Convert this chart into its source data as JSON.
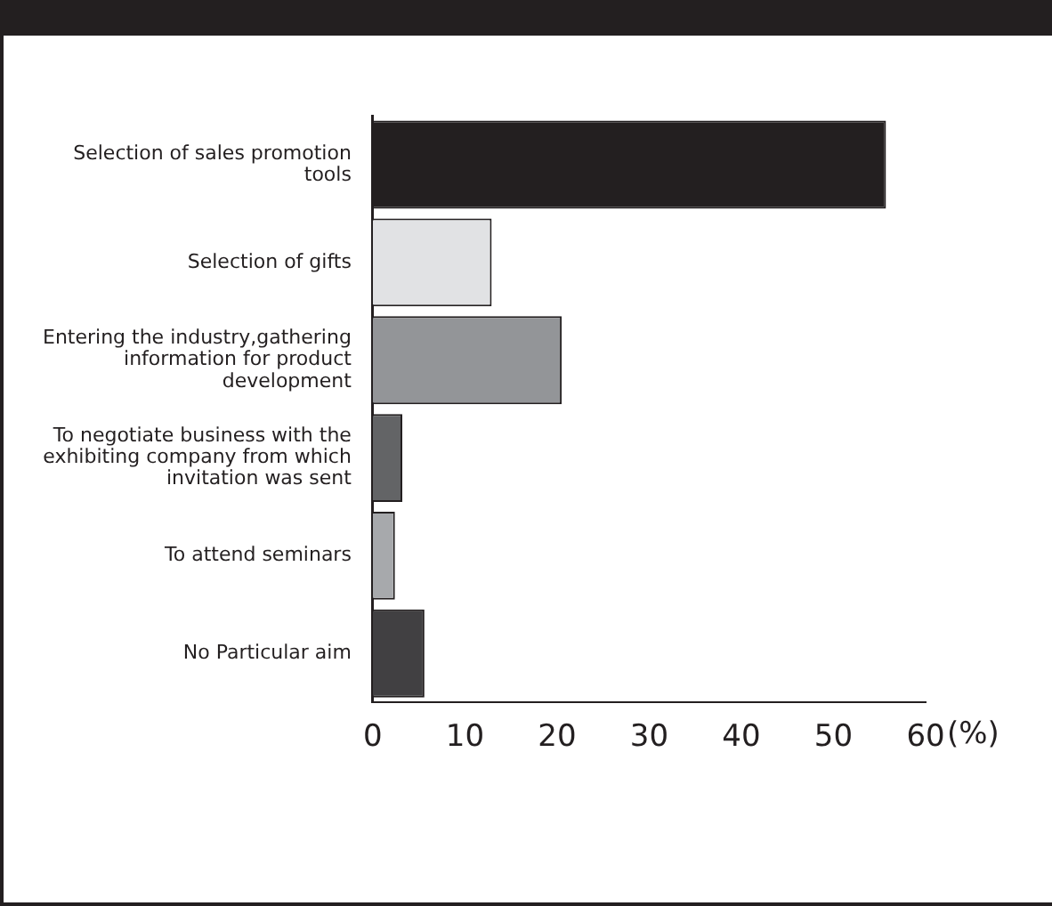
{
  "chart_data": {
    "type": "bar",
    "orientation": "horizontal",
    "xlabel": "(%)",
    "categories": [
      "Selection of sales promotion tools",
      "Selection of gifts",
      "Entering the industry,gathering information for product development",
      "To negotiate business with the exhibiting company from which invitation was sent",
      "To attend seminars",
      "No Particular aim"
    ],
    "values": [
      55.7,
      12.9,
      20.5,
      3.2,
      2.4,
      5.6
    ],
    "colors": [
      "#231f20",
      "#e1e2e4",
      "#939598",
      "#636466",
      "#a7a9ac",
      "#414042"
    ],
    "xlim": [
      0,
      60
    ],
    "xticks": [
      0,
      10,
      20,
      30,
      40,
      50,
      60
    ],
    "grid": false
  }
}
